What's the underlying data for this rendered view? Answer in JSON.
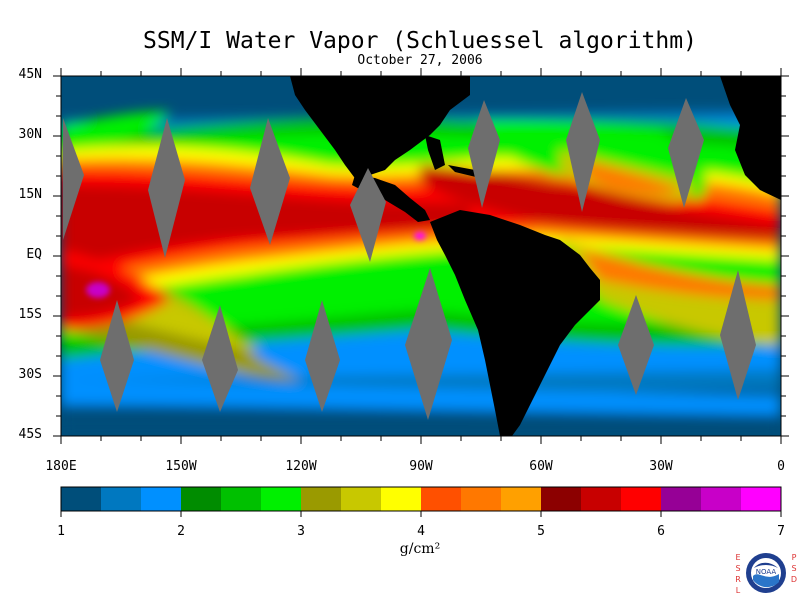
{
  "title": "SSM/I Water Vapor (Schluessel algorithm)",
  "date": "October 27, 2006",
  "lat_labels": [
    "45N",
    "30N",
    "15N",
    "EQ",
    "15S",
    "30S",
    "45S"
  ],
  "lon_labels": [
    "180E",
    "150W",
    "120W",
    "90W",
    "60W",
    "30W",
    "0"
  ],
  "colorbar": {
    "units": "g/cm²",
    "ticks": [
      "1",
      "2",
      "3",
      "4",
      "5",
      "6",
      "7"
    ],
    "min": 1,
    "max": 7,
    "colors": [
      "#004e7a",
      "#0078c0",
      "#0090ff",
      "#008c00",
      "#00c000",
      "#00f000",
      "#9a9a00",
      "#c8c800",
      "#ffff00",
      "#ff5000",
      "#ff7800",
      "#ffa000",
      "#8c0000",
      "#c80000",
      "#ff0000",
      "#960096",
      "#c800c8",
      "#ff00ff"
    ]
  },
  "map": {
    "lon_range": [
      -180,
      0
    ],
    "lat_range": [
      -45,
      45
    ],
    "land_color": "#000000",
    "missing_color": "#6e6e6e",
    "ocean_base": "#004e7a"
  },
  "logo": {
    "letters_left": [
      "E",
      "S",
      "R",
      "L"
    ],
    "letters_right": [
      "P",
      "S",
      "D"
    ],
    "seal_text": "NOAA"
  }
}
